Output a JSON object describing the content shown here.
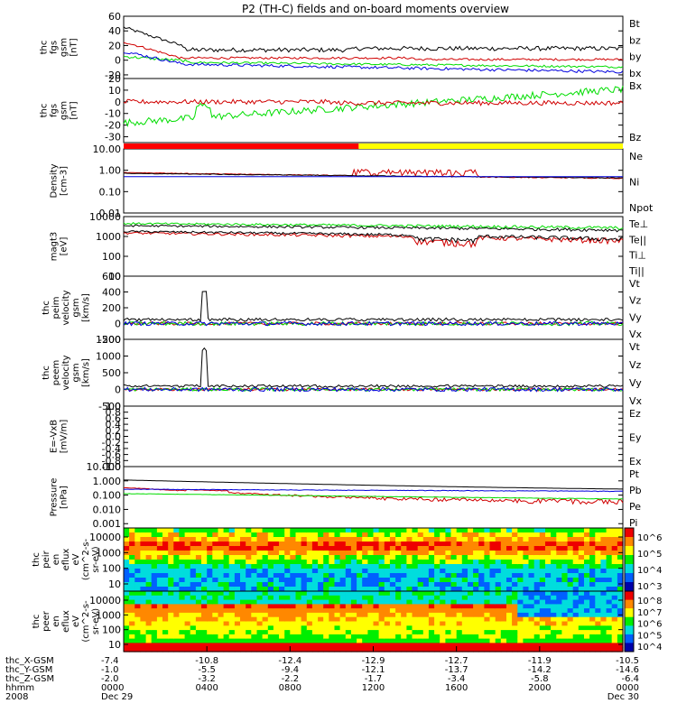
{
  "title": "P2 (TH-C) fields and on-board moments overview",
  "chart_data": {
    "type": "line",
    "title": "P2 (TH-C) fields and on-board moments overview",
    "panels": [
      {
        "id": "fgs",
        "ylabel": [
          "thc",
          "fgs",
          "gsm",
          "[nT]"
        ],
        "ylim": [
          -25,
          60
        ],
        "ticks": [
          60,
          40,
          20,
          0,
          -20
        ],
        "legend": [
          {
            "name": "Bt",
            "color": "#000000"
          },
          {
            "name": "bz",
            "color": "#cc0000"
          },
          {
            "name": "by",
            "color": "#00cc00"
          },
          {
            "name": "bx",
            "color": "#0000cc"
          }
        ]
      },
      {
        "id": "fgs_angles",
        "ylabel": [
          "thc",
          "fgs",
          "gsm",
          "[nT]"
        ],
        "ylim": [
          -35,
          20
        ],
        "ticks": [
          20,
          10,
          0,
          -10,
          -20,
          -30
        ],
        "legend": [
          {
            "name": "Bx",
            "color": "#00cc00"
          },
          {
            "name": "Bz",
            "color": "#cc0000"
          }
        ]
      },
      {
        "id": "density",
        "ylabel": [
          "Density",
          "[cm-3]"
        ],
        "log": true,
        "ylim": [
          0.01,
          10
        ],
        "ticks": [
          "10.00",
          "1.00",
          "0.10",
          "0.01"
        ],
        "legend": [
          {
            "name": "Ne",
            "color": "#cc0000"
          },
          {
            "name": "Ni",
            "color": "#000000"
          },
          {
            "name": "Npot",
            "color": "#0000cc"
          }
        ]
      },
      {
        "id": "temperature",
        "ylabel": [
          "magt3",
          "[eV]"
        ],
        "log": true,
        "ylim": [
          10,
          10000
        ],
        "ticks": [
          "10000",
          "1000",
          "100",
          "10"
        ],
        "legend": [
          {
            "name": "Te⊥",
            "color": "#cc0000"
          },
          {
            "name": "Te||",
            "color": "#000000"
          },
          {
            "name": "Ti⊥",
            "color": "#000000"
          },
          {
            "name": "Ti||",
            "color": "#00cc00"
          }
        ]
      },
      {
        "id": "peim_velocity",
        "ylabel": [
          "thc",
          "peim",
          "velocity",
          "gsm",
          "[km/s]"
        ],
        "ylim": [
          -200,
          600
        ],
        "ticks": [
          600,
          400,
          200,
          0,
          -200
        ],
        "legend": [
          {
            "name": "Vt",
            "color": "#000000"
          },
          {
            "name": "Vz",
            "color": "#cc0000"
          },
          {
            "name": "Vy",
            "color": "#00cc00"
          },
          {
            "name": "Vx",
            "color": "#0000cc"
          }
        ]
      },
      {
        "id": "peem_velocity",
        "ylabel": [
          "thc",
          "peem",
          "velocity",
          "gsm",
          "[km/s]"
        ],
        "ylim": [
          -500,
          1500
        ],
        "ticks": [
          1500,
          1000,
          500,
          0,
          -500
        ],
        "legend": [
          {
            "name": "Vt",
            "color": "#000000"
          },
          {
            "name": "Vz",
            "color": "#cc0000"
          },
          {
            "name": "Vy",
            "color": "#00cc00"
          },
          {
            "name": "Vx",
            "color": "#0000cc"
          }
        ]
      },
      {
        "id": "efield",
        "ylabel": [
          "E=-VxB",
          "[mV/m]"
        ],
        "ylim": [
          -1,
          1
        ],
        "ticks": [
          "1.0",
          "0.8",
          "0.6",
          "0.4",
          "0.2",
          "0.0",
          "-0.2",
          "-0.4",
          "-0.6",
          "-0.8",
          "-1.0"
        ],
        "legend": [
          {
            "name": "Ez",
            "color": "#cc0000"
          },
          {
            "name": "Ey",
            "color": "#00cc00"
          },
          {
            "name": "Ex",
            "color": "#0000cc"
          }
        ]
      },
      {
        "id": "pressure",
        "ylabel": [
          "Pressure",
          "[nPa]"
        ],
        "log": true,
        "ylim": [
          0.0005,
          10
        ],
        "ticks": [
          "10.000",
          "1.000",
          "0.100",
          "0.010",
          "0.001"
        ],
        "legend": [
          {
            "name": "Pt",
            "color": "#000000"
          },
          {
            "name": "Pb",
            "color": "#cc0000"
          },
          {
            "name": "Pe",
            "color": "#00cc00"
          },
          {
            "name": "Pi",
            "color": "#0000cc"
          }
        ]
      },
      {
        "id": "peir_spec",
        "ylabel": [
          "thc",
          "peir",
          "en",
          "eflux",
          "eV",
          "(cm^2-s-",
          "sr-eV)"
        ],
        "ticks": [
          "10000",
          "1000",
          "100",
          "10"
        ],
        "colorbar": [
          "10^6",
          "10^5",
          "10^4",
          "10^3"
        ]
      },
      {
        "id": "peer_spec",
        "ylabel": [
          "thc",
          "peer",
          "en",
          "eflux",
          "eV",
          "(cm^2-s-",
          "sr-eV)"
        ],
        "ticks": [
          "10000",
          "1000",
          "100",
          "10"
        ],
        "colorbar": [
          "10^8",
          "10^7",
          "10^6",
          "10^5",
          "10^4"
        ]
      }
    ],
    "quality_bar": {
      "red_until_hour": 11.3,
      "colors": [
        "#ff0000",
        "#ffff00"
      ]
    },
    "x_axis": {
      "rows": [
        {
          "label": "thc_X-GSM",
          "values": [
            "-7.4",
            "-10.8",
            "-12.4",
            "-12.9",
            "-12.7",
            "-11.9",
            "-10.5"
          ]
        },
        {
          "label": "thc_Y-GSM",
          "values": [
            "-1.0",
            "-5.5",
            "-9.4",
            "-12.1",
            "-13.7",
            "-14.2",
            "-14.6"
          ]
        },
        {
          "label": "thc_Z-GSM",
          "values": [
            "-2.0",
            "-3.2",
            "-2.2",
            "-1.7",
            "-3.4",
            "-5.8",
            "-6.4"
          ]
        },
        {
          "label": "hhmm",
          "values": [
            "0000",
            "0400",
            "0800",
            "1200",
            "1600",
            "2000",
            "0000"
          ]
        },
        {
          "label": "2008",
          "values": [
            "Dec 29",
            "",
            "",
            "",
            "",
            "",
            "Dec 30"
          ]
        }
      ]
    }
  }
}
